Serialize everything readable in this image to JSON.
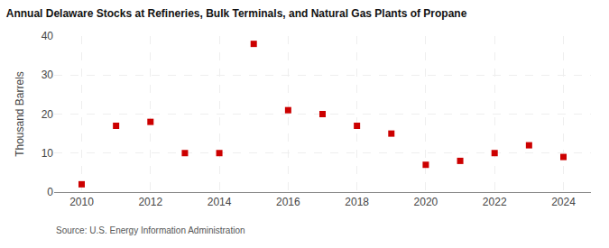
{
  "chart_data": {
    "type": "scatter",
    "title": "Annual Delaware Stocks at Refineries, Bulk Terminals, and Natural Gas Plants of Propane",
    "ylabel": "Thousand Barrels",
    "annotations": [
      "Source: U.S. Energy Information Administration"
    ],
    "x": [
      2010,
      2011,
      2012,
      2013,
      2014,
      2015,
      2016,
      2017,
      2018,
      2019,
      2020,
      2021,
      2022,
      2023,
      2024
    ],
    "values": [
      2,
      17,
      18,
      10,
      10,
      38,
      21,
      20,
      17,
      15,
      7,
      8,
      10,
      12,
      9
    ],
    "color": "#cc0000",
    "marker": "square",
    "xlim": [
      2009.2,
      2024.8
    ],
    "xticks": [
      2010,
      2012,
      2014,
      2016,
      2018,
      2020,
      2022,
      2024
    ],
    "ylim": [
      0,
      40
    ],
    "yticks": [
      0,
      10,
      20,
      30,
      40
    ],
    "grid": true
  }
}
